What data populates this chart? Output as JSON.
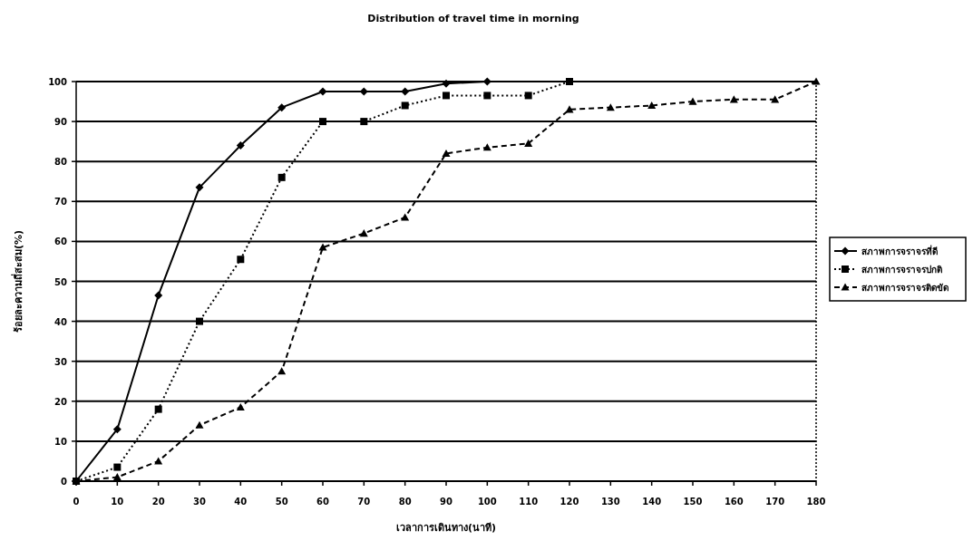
{
  "chart_data": {
    "type": "line",
    "title": "Distribution of travel time in morning",
    "xlabel": "เวลาการเดินทาง(นาที)",
    "ylabel": "ร้อยละความถี่สะสม(%)",
    "xlim": [
      0,
      180
    ],
    "xticks": [
      0,
      10,
      20,
      30,
      40,
      50,
      60,
      70,
      80,
      90,
      100,
      110,
      120,
      130,
      140,
      150,
      160,
      170,
      180
    ],
    "ylim": [
      0,
      100
    ],
    "yticks": [
      0,
      10,
      20,
      30,
      40,
      50,
      60,
      70,
      80,
      90,
      100
    ],
    "grid": "y",
    "legend": "right",
    "series": [
      {
        "name": "สภาพการจราจรที่ดี",
        "color": "#000000",
        "marker": "diamond",
        "line_style": "solid",
        "x": [
          0,
          10,
          20,
          30,
          40,
          50,
          60,
          70,
          80,
          90,
          100
        ],
        "values": [
          0,
          13,
          46.5,
          73.5,
          84,
          93.5,
          97.5,
          97.5,
          97.5,
          99.5,
          100
        ]
      },
      {
        "name": "สภาพการจราจรปกติ",
        "color": "#000000",
        "marker": "square",
        "line_style": "dotted",
        "x": [
          0,
          10,
          20,
          30,
          40,
          50,
          60,
          70,
          80,
          90,
          100,
          110,
          120
        ],
        "values": [
          0,
          3.5,
          18,
          40,
          55.5,
          76,
          90,
          90,
          94,
          96.5,
          96.5,
          96.5,
          100
        ]
      },
      {
        "name": "สภาพการจราจรติดขัด",
        "color": "#000000",
        "marker": "triangle",
        "line_style": "dashed",
        "x": [
          0,
          10,
          20,
          30,
          40,
          50,
          60,
          70,
          80,
          90,
          100,
          110,
          120,
          130,
          140,
          150,
          160,
          170,
          180
        ],
        "values": [
          0,
          1,
          5,
          14,
          18.5,
          27.5,
          58.5,
          62,
          66,
          82,
          83.5,
          84.5,
          93,
          93.5,
          94,
          95,
          95.5,
          95.5,
          100
        ]
      }
    ]
  }
}
